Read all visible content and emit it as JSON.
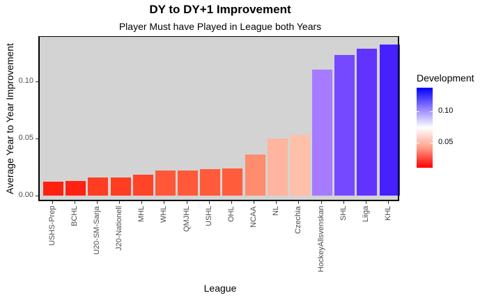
{
  "chart_data": {
    "type": "bar",
    "title": "DY to DY+1 Improvement",
    "subtitle": "Player Must have Played in League both Years",
    "xlabel": "League",
    "ylabel": "Average Year to Year Improvement",
    "ylim": [
      0,
      0.14
    ],
    "yticks": [
      "0.00",
      "0.05",
      "0.10"
    ],
    "grid": false,
    "legend_position": "right",
    "categories": [
      "USHS-Prep",
      "BCHL",
      "U20-SM-Sarja",
      "J20-Nationell",
      "MHL",
      "WHL",
      "QMJHL",
      "USHL",
      "OHL",
      "NCAA",
      "NL",
      "Czechia",
      "HockeyAllsvenskan",
      "SHL",
      "Liiga",
      "KHL"
    ],
    "values": [
      0.012,
      0.013,
      0.016,
      0.016,
      0.018,
      0.022,
      0.022,
      0.023,
      0.024,
      0.036,
      0.05,
      0.053,
      0.11,
      0.123,
      0.128,
      0.132
    ],
    "colors": [
      "#FF2010",
      "#FF2212",
      "#FF3D22",
      "#FF3D22",
      "#FF4428",
      "#FF5838",
      "#FF5939",
      "#FF5A3A",
      "#FF5C3C",
      "#FF8C6C",
      "#FFB5A0",
      "#FFC0AA",
      "#A67BFF",
      "#7549FF",
      "#6233FF",
      "#4620FF"
    ],
    "legend": {
      "title": "Development",
      "type": "colorbar",
      "low_color": "#FF0000",
      "mid_color": "#FFFFFF",
      "high_color": "#0000FF",
      "ticks": [
        "0.05",
        "0.10"
      ]
    }
  }
}
